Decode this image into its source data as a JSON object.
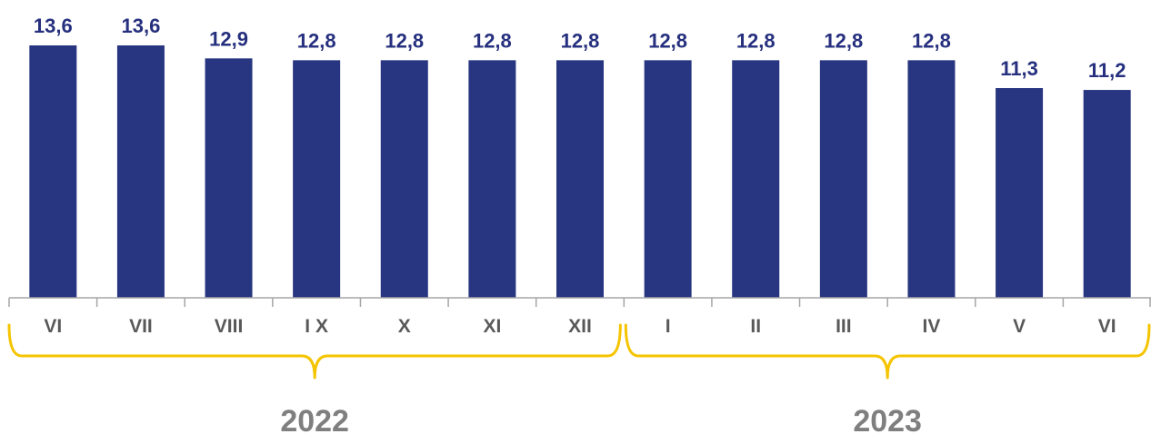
{
  "chart_data": {
    "type": "bar",
    "categories": [
      "VI",
      "VII",
      "VIII",
      "I X",
      "X",
      "XI",
      "XII",
      "I",
      "II",
      "III",
      "IV",
      "V",
      "VI"
    ],
    "values": [
      13.6,
      13.6,
      12.9,
      12.8,
      12.8,
      12.8,
      12.8,
      12.8,
      12.8,
      12.8,
      12.8,
      11.3,
      11.2
    ],
    "value_labels": [
      "13,6",
      "13,6",
      "12,9",
      "12,8",
      "12,8",
      "12,8",
      "12,8",
      "12,8",
      "12,8",
      "12,8",
      "12,8",
      "11,3",
      "11,2"
    ],
    "groups": [
      {
        "label": "2022",
        "from": 0,
        "to": 6
      },
      {
        "label": "2023",
        "from": 7,
        "to": 12
      }
    ],
    "title": "",
    "xlabel": "",
    "ylabel": "",
    "ylim": [
      0,
      13.6
    ],
    "grid": false,
    "legend": "none",
    "colors": {
      "bar": "#283580",
      "value_label": "#26307e",
      "tick_label": "#595959",
      "year_label": "#7f7f7f",
      "bracket": "#f5c400",
      "axis": "#a6a6a6"
    }
  }
}
